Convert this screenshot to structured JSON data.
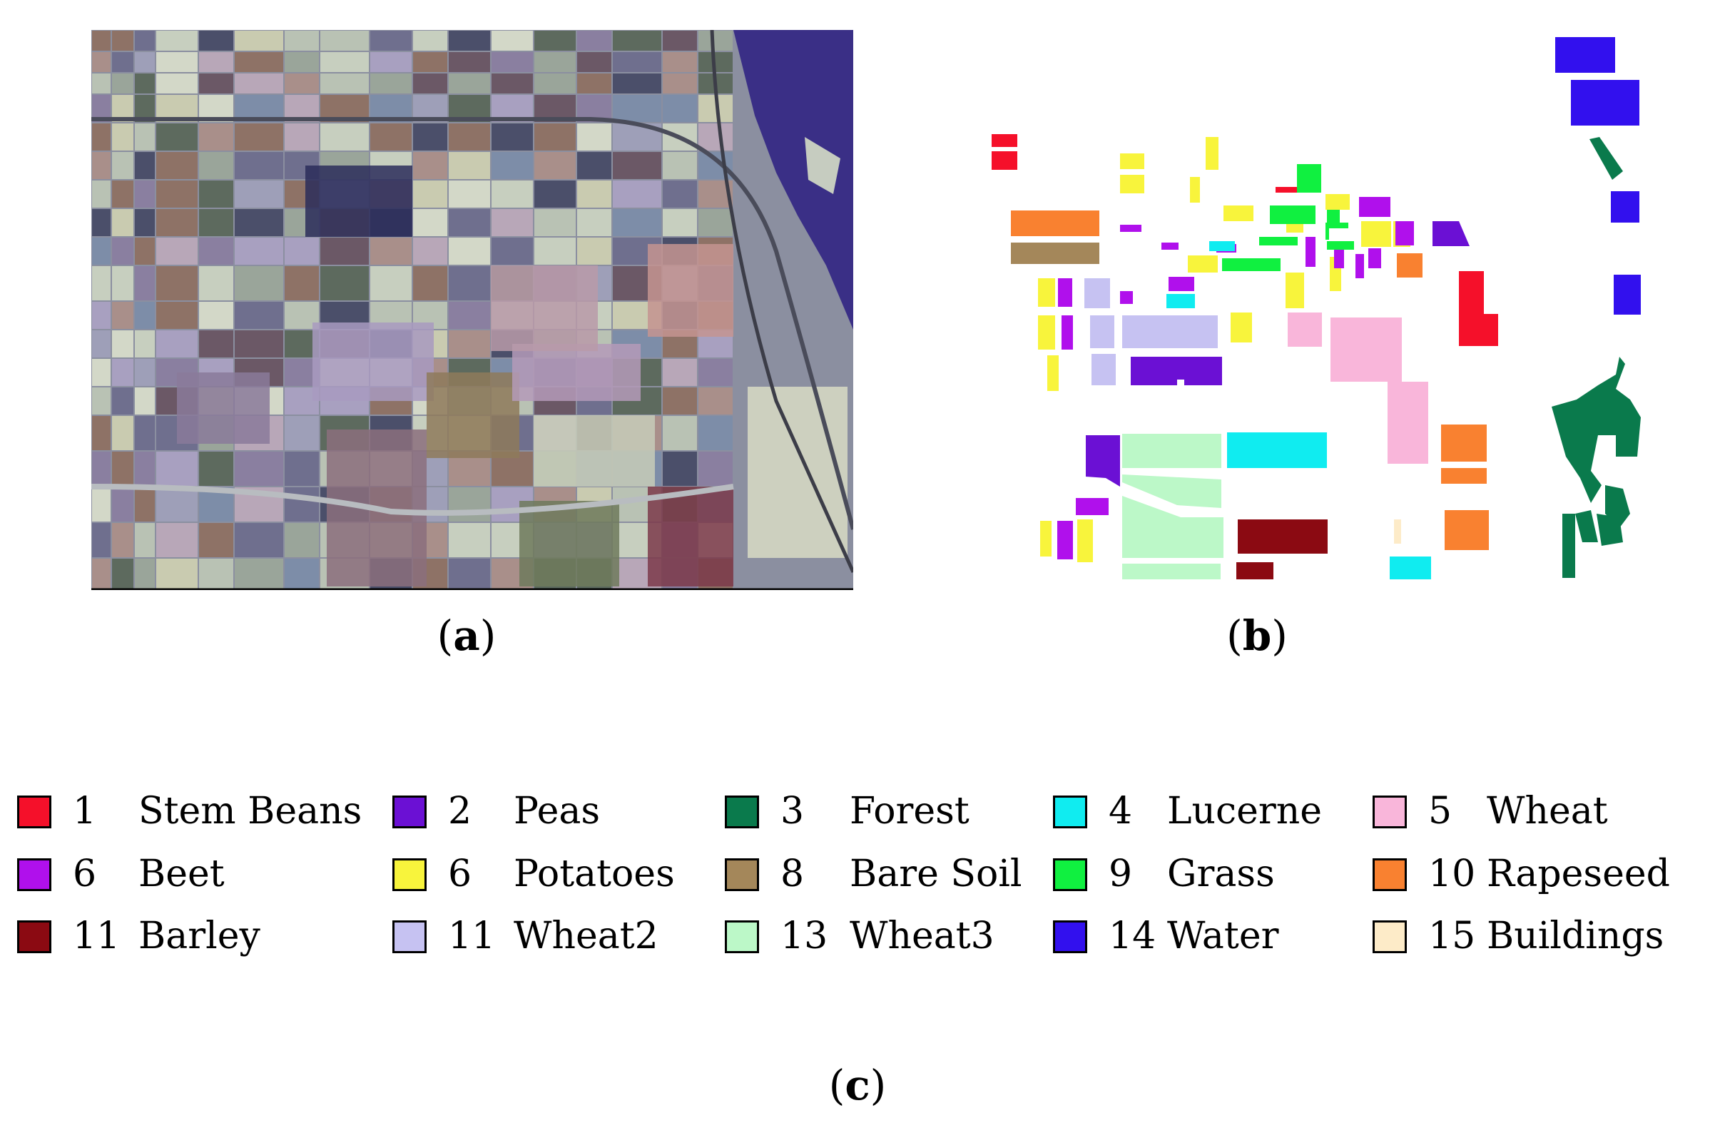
{
  "captions": {
    "a": "a",
    "b": "b",
    "c": "c"
  },
  "legend": [
    {
      "num": "1",
      "name": "Stem Beans",
      "color": "#f5102a"
    },
    {
      "num": "2",
      "name": "Peas",
      "color": "#6b10d4"
    },
    {
      "num": "3",
      "name": "Forest",
      "color": "#0a7a4c"
    },
    {
      "num": "4",
      "name": "Lucerne",
      "color": "#10ecf0"
    },
    {
      "num": "5",
      "name": "Wheat",
      "color": "#f9b6da"
    },
    {
      "num": "6",
      "name": "Beet",
      "color": "#b010ec"
    },
    {
      "num": "6",
      "name": "Potatoes",
      "color": "#f8f43c"
    },
    {
      "num": "8",
      "name": "Bare Soil",
      "color": "#a4875a"
    },
    {
      "num": "9",
      "name": "Grass",
      "color": "#10f040"
    },
    {
      "num": "10",
      "name": "Rapeseed",
      "color": "#f98130"
    },
    {
      "num": "11",
      "name": "Barley",
      "color": "#8b0a12"
    },
    {
      "num": "11",
      "name": "Wheat2",
      "color": "#c6c2f2"
    },
    {
      "num": "13",
      "name": "Wheat3",
      "color": "#bcf8c8"
    },
    {
      "num": "14",
      "name": "Water",
      "color": "#3210ee"
    },
    {
      "num": "15",
      "name": "Buildings",
      "color": "#fdebc8"
    }
  ]
}
